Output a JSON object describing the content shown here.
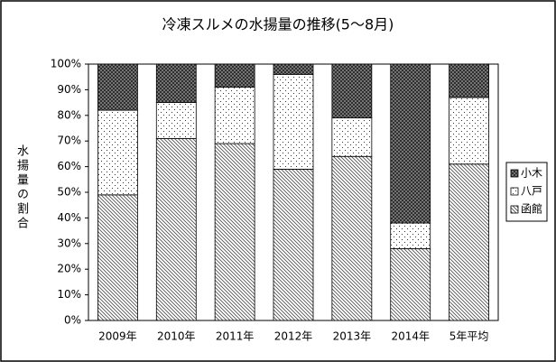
{
  "chart_data": {
    "type": "stacked_bar_percent",
    "title": "冷凍スルメの水揚量の推移(5～8月)",
    "y_label": "水揚量の割合",
    "categories": [
      "2009年",
      "2010年",
      "2011年",
      "2012年",
      "2013年",
      "2014年",
      "5年平均"
    ],
    "series": [
      {
        "name": "函館",
        "color": "#808080",
        "pattern": "diagonal",
        "values": [
          49,
          71,
          69,
          59,
          64,
          28,
          61
        ]
      },
      {
        "name": "八戸",
        "color": "#808080",
        "pattern": "dots",
        "values": [
          33,
          14,
          22,
          37,
          15,
          10,
          26
        ]
      },
      {
        "name": "小木",
        "color": "#404040",
        "pattern": "crosshatch",
        "values": [
          18,
          15,
          9,
          4,
          21,
          62,
          13
        ]
      }
    ],
    "ylim": [
      0,
      100
    ],
    "yticks": [
      {
        "value": 0,
        "label": "0%"
      },
      {
        "value": 10,
        "label": "10%"
      },
      {
        "value": 20,
        "label": "20%"
      },
      {
        "value": 30,
        "label": "30%"
      },
      {
        "value": 40,
        "label": "40%"
      },
      {
        "value": 50,
        "label": "50%"
      },
      {
        "value": 60,
        "label": "60%"
      },
      {
        "value": 70,
        "label": "70%"
      },
      {
        "value": 80,
        "label": "80%"
      },
      {
        "value": 90,
        "label": "90%"
      },
      {
        "value": 100,
        "label": "100%"
      }
    ],
    "grid": false,
    "legend": "right"
  }
}
